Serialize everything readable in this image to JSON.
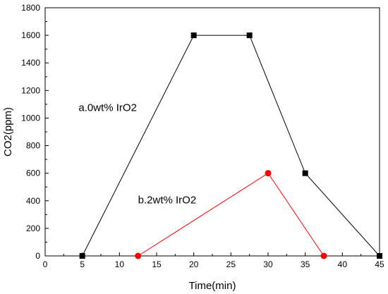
{
  "chart_data": {
    "type": "line",
    "title": "",
    "xlabel": "Time(min)",
    "ylabel": "CO2(ppm)",
    "xlim": [
      0,
      45
    ],
    "ylim": [
      0,
      1800
    ],
    "xticks": [
      0,
      5,
      10,
      15,
      20,
      25,
      30,
      35,
      40,
      45
    ],
    "yticks": [
      0,
      200,
      400,
      600,
      800,
      1000,
      1200,
      1400,
      1600,
      1800
    ],
    "grid": false,
    "legend": "none",
    "series": [
      {
        "name": "a.0wt% IrO2",
        "color": "#000000",
        "marker": "square",
        "x": [
          5,
          20,
          27.5,
          35,
          45
        ],
        "y": [
          0,
          1600,
          1600,
          600,
          0
        ]
      },
      {
        "name": "b.2wt% IrO2",
        "color": "#ff0000",
        "marker": "circle",
        "x": [
          12.5,
          30,
          37.5
        ],
        "y": [
          0,
          600,
          0
        ]
      }
    ],
    "annotations": [
      {
        "text": "a.0wt% IrO2",
        "x": 4.5,
        "y": 1050
      },
      {
        "text": "b.2wt% IrO2",
        "x": 12.5,
        "y": 380
      }
    ]
  }
}
